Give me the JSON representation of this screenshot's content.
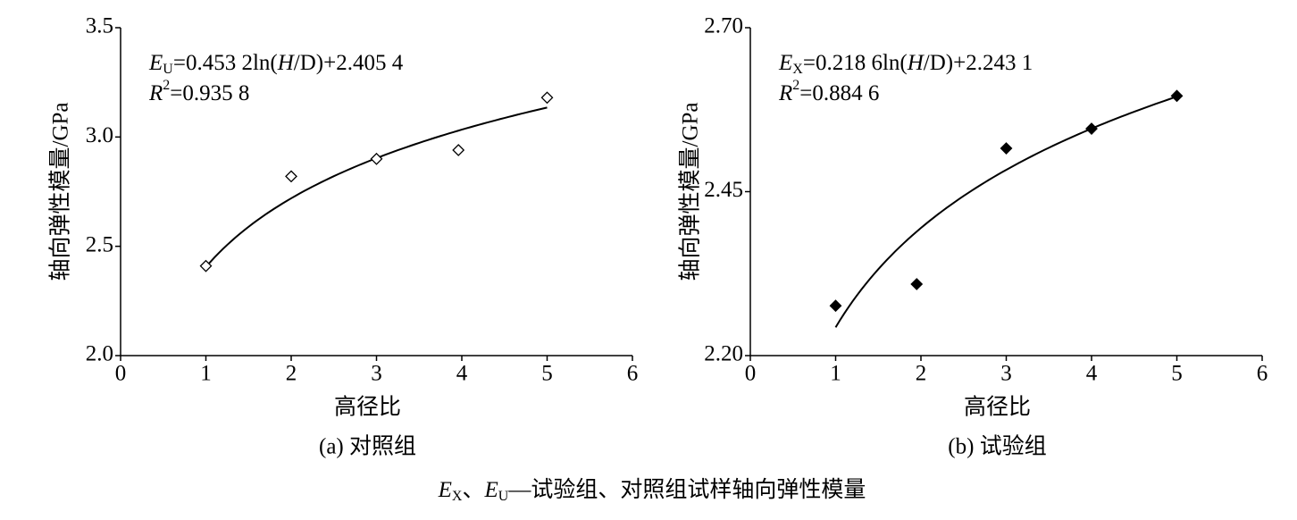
{
  "chart_data": [
    {
      "type": "scatter",
      "subtitle": "(a) 对照组",
      "xlabel": "高径比",
      "ylabel": "轴向弹性模量/GPa",
      "equation": [
        "E",
        "U",
        "=0.453 2ln(",
        "H",
        "/D)+2.405 4"
      ],
      "r2": [
        "R",
        "2",
        "=0.935 8"
      ],
      "x": [
        1,
        2,
        3,
        3.96,
        5
      ],
      "values": [
        2.41,
        2.82,
        2.9,
        2.94,
        3.18
      ],
      "color": "#000000",
      "filled": false,
      "trendline": {
        "type": "log",
        "a": 0.4532,
        "b": 2.4054
      },
      "xlim": [
        0,
        6
      ],
      "ylim": [
        2.0,
        3.5
      ],
      "xticks": [
        0,
        1,
        2,
        3,
        4,
        5,
        6
      ],
      "yticks": [
        {
          "value": 2,
          "label": "2.0"
        },
        2.5,
        {
          "value": 3,
          "label": "3.0"
        },
        3.5
      ],
      "grid": false
    },
    {
      "type": "scatter",
      "subtitle": "(b) 试验组",
      "xlabel": "高径比",
      "ylabel": "轴向弹性模量/GPa",
      "equation": [
        "E",
        "X",
        "=0.218 6ln(",
        "H",
        "/D)+2.243 1"
      ],
      "r2": [
        "R",
        "2",
        "=0.884 6"
      ],
      "x": [
        1,
        1.95,
        3,
        4,
        5
      ],
      "values": [
        2.276,
        2.309,
        2.516,
        2.546,
        2.596
      ],
      "color": "#000000",
      "filled": true,
      "trendline": {
        "type": "log",
        "a": 0.2186,
        "b": 2.2431
      },
      "xlim": [
        0,
        6
      ],
      "ylim": [
        2.2,
        2.7
      ],
      "xticks": [
        0,
        1,
        2,
        3,
        4,
        5,
        6
      ],
      "yticks": [
        {
          "value": 2.2,
          "label": "2.20"
        },
        2.45,
        {
          "value": 2.7,
          "label": "2.70"
        }
      ],
      "grid": false
    }
  ],
  "caption": [
    "E",
    "X",
    "、",
    "E",
    "U",
    "—试验组、对照组试样轴向弹性模量"
  ]
}
